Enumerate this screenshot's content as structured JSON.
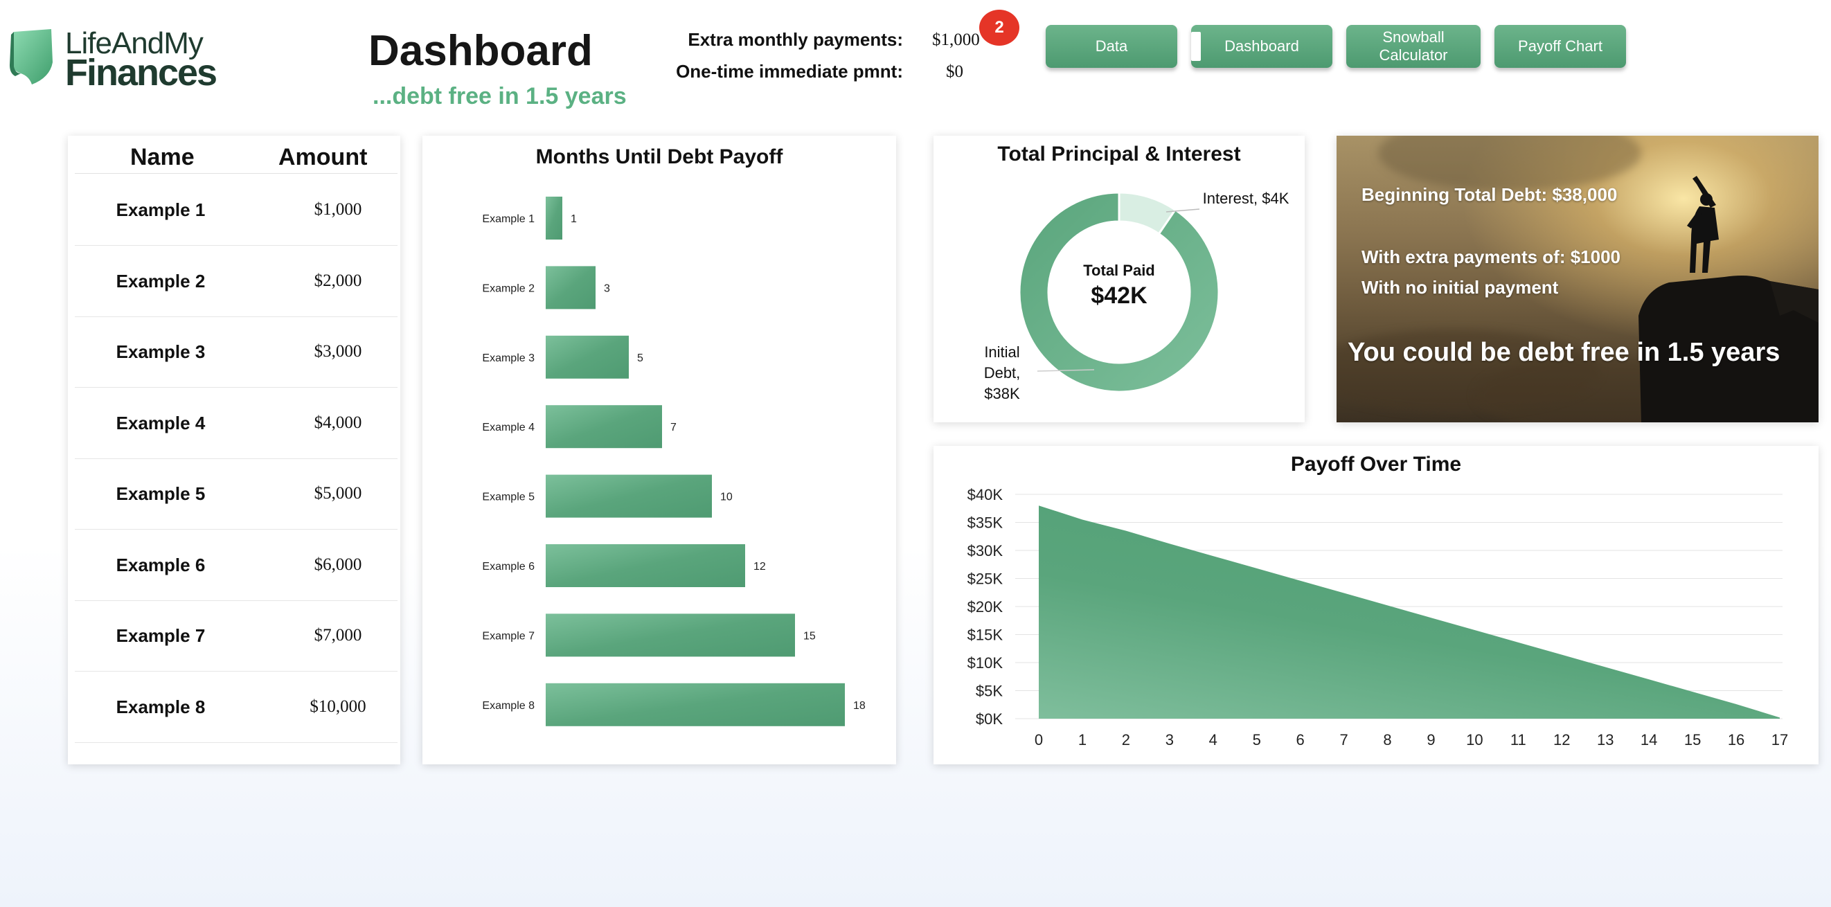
{
  "brand": {
    "line1": "LifeAndMy",
    "line2": "Finances"
  },
  "header": {
    "title": "Dashboard",
    "tagline": "...debt free in 1.5 years",
    "extra_label": "Extra monthly payments:",
    "extra_value": "$1,000",
    "onetime_label": "One-time immediate pmnt:",
    "onetime_value": "$0",
    "badge": "2"
  },
  "nav": {
    "data": "Data",
    "dashboard": "Dashboard",
    "snowball": "Snowball Calculator",
    "payoff": "Payoff Chart"
  },
  "table": {
    "col_name": "Name",
    "col_amount": "Amount",
    "rows": [
      {
        "name": "Example 1",
        "amount": "$1,000"
      },
      {
        "name": "Example 2",
        "amount": "$2,000"
      },
      {
        "name": "Example 3",
        "amount": "$3,000"
      },
      {
        "name": "Example 4",
        "amount": "$4,000"
      },
      {
        "name": "Example 5",
        "amount": "$5,000"
      },
      {
        "name": "Example 6",
        "amount": "$6,000"
      },
      {
        "name": "Example 7",
        "amount": "$7,000"
      },
      {
        "name": "Example 8",
        "amount": "$10,000"
      }
    ]
  },
  "donut": {
    "title": "Total Principal & Interest",
    "center_label": "Total Paid",
    "center_value": "$42K",
    "interest_label": "Interest, $4K",
    "initial_label": "Initial Debt, $38K"
  },
  "hero": {
    "beginning": "Beginning Total Debt: $38,000",
    "extra": "With extra payments of: $1000",
    "initial": "With no initial payment",
    "headline": "You could be debt free in 1.5 years"
  },
  "colors": {
    "accent": "#5aa57c",
    "accent_light": "#d9eee3",
    "badge": "#e53527"
  },
  "chart_data": [
    {
      "type": "bar",
      "title": "Months Until Debt Payoff",
      "categories": [
        "Example 1",
        "Example 2",
        "Example 3",
        "Example 4",
        "Example 5",
        "Example 6",
        "Example 7",
        "Example 8"
      ],
      "values": [
        1,
        3,
        5,
        7,
        10,
        12,
        15,
        18
      ],
      "orientation": "horizontal",
      "grid": false
    },
    {
      "type": "pie",
      "title": "Total Principal & Interest",
      "categories": [
        "Interest",
        "Initial Debt"
      ],
      "values": [
        4,
        38
      ],
      "unit": "$K",
      "donut": true
    },
    {
      "type": "area",
      "title": "Payoff Over Time",
      "x": [
        0,
        1,
        2,
        3,
        4,
        5,
        6,
        7,
        8,
        9,
        10,
        11,
        12,
        13,
        14,
        15,
        16,
        17
      ],
      "values": [
        38000,
        35500,
        33500,
        31200,
        29000,
        26800,
        24600,
        22400,
        20200,
        18000,
        15800,
        13600,
        11400,
        9200,
        7000,
        4800,
        2600,
        200
      ],
      "y_ticks": [
        "$0K",
        "$5K",
        "$10K",
        "$15K",
        "$20K",
        "$25K",
        "$30K",
        "$35K",
        "$40K"
      ],
      "ylim": [
        0,
        40000
      ],
      "grid": true
    }
  ]
}
